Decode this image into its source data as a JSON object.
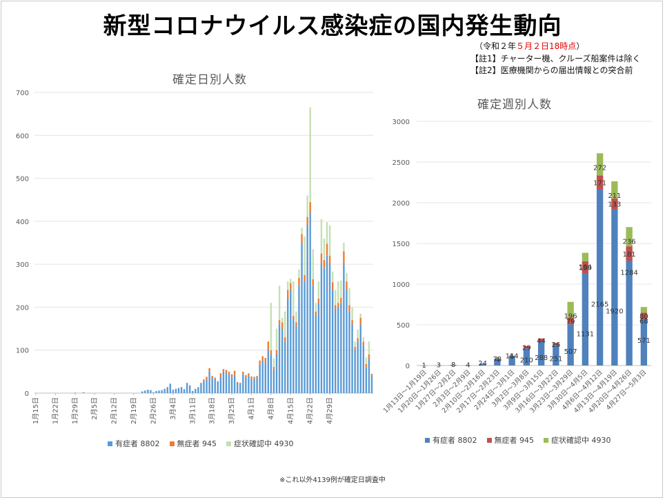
{
  "header": {
    "title": "新型コロナウイルス感染症の国内発生動向",
    "asof_prefix": "（令和２年",
    "asof_red": "５月２日18時点",
    "asof_suffix": "）",
    "note1": "【註1】チャーター機、クルーズ船案件は除く",
    "note2": "【註2】医療機関からの届出情報との突合前"
  },
  "footnote": "※これ以外4139例が確定日調査中",
  "colors": {
    "symptomatic": "#4f81bd",
    "asymptomatic": "#c0504d",
    "confirming": "#9bbb59",
    "daily_sym": "#5b9bd5",
    "daily_asym": "#ed7d31",
    "daily_conf": "#c5e0b4"
  },
  "chart_data": [
    {
      "type": "bar",
      "stacked": true,
      "title": "確定日別人数",
      "ylim": [
        0,
        700
      ],
      "yticks": [
        0,
        100,
        200,
        300,
        400,
        500,
        600,
        700
      ],
      "grid": true,
      "legend_position": "bottom",
      "x_tick_labels": [
        "1月15日",
        "1月22日",
        "1月29日",
        "2月5日",
        "2月12日",
        "2月19日",
        "2月26日",
        "3月4日",
        "3月11日",
        "3月18日",
        "3月25日",
        "4月1日",
        "4月8日",
        "4月15日",
        "4月22日",
        "4月29日"
      ],
      "x_tick_every": 7,
      "legend": [
        "有症者 8802",
        "無症者 945",
        "症状確認中 4930"
      ],
      "series": [
        {
          "name": "有症者 8802",
          "values": [
            0,
            0,
            0,
            0,
            0,
            0,
            0,
            0,
            0,
            0,
            0,
            0,
            0,
            0,
            1,
            0,
            0,
            2,
            0,
            0,
            0,
            0,
            0,
            0,
            0,
            0,
            0,
            0,
            0,
            0,
            0,
            0,
            0,
            0,
            0,
            0,
            0,
            0,
            4,
            6,
            8,
            7,
            2,
            5,
            6,
            7,
            10,
            14,
            22,
            8,
            10,
            12,
            14,
            9,
            22,
            18,
            5,
            10,
            14,
            22,
            28,
            32,
            50,
            36,
            32,
            26,
            38,
            50,
            48,
            44,
            38,
            42,
            24,
            22,
            44,
            36,
            40,
            33,
            34,
            36,
            66,
            76,
            72,
            100,
            90,
            55,
            90,
            160,
            150,
            120,
            220,
            240,
            170,
            155,
            250,
            350,
            260,
            390,
            420,
            250,
            180,
            210,
            300,
            290,
            320,
            300,
            240,
            195,
            200,
            210,
            300,
            240,
            190,
            160,
            100,
            120,
            160,
            110,
            60,
            80,
            40
          ]
        },
        {
          "name": "無症者 945",
          "values": [
            0,
            0,
            0,
            0,
            0,
            0,
            0,
            0,
            0,
            0,
            0,
            0,
            0,
            0,
            0,
            0,
            0,
            0,
            0,
            0,
            0,
            0,
            0,
            0,
            0,
            0,
            0,
            0,
            0,
            0,
            0,
            0,
            0,
            0,
            0,
            0,
            0,
            0,
            0,
            0,
            0,
            0,
            0,
            0,
            0,
            0,
            0,
            0,
            0,
            0,
            0,
            0,
            0,
            0,
            2,
            0,
            0,
            0,
            0,
            2,
            4,
            6,
            8,
            4,
            4,
            2,
            8,
            6,
            6,
            6,
            6,
            10,
            2,
            2,
            6,
            6,
            6,
            6,
            4,
            4,
            10,
            10,
            10,
            20,
            10,
            6,
            10,
            10,
            15,
            10,
            20,
            16,
            10,
            10,
            18,
            20,
            15,
            20,
            25,
            15,
            10,
            10,
            25,
            20,
            28,
            20,
            18,
            10,
            10,
            12,
            30,
            20,
            15,
            10,
            8,
            8,
            15,
            10,
            8,
            10,
            5
          ]
        },
        {
          "name": "症状確認中 4930",
          "values": [
            0,
            0,
            0,
            0,
            0,
            0,
            0,
            0,
            0,
            0,
            0,
            0,
            0,
            0,
            0,
            0,
            0,
            0,
            0,
            0,
            0,
            0,
            0,
            0,
            0,
            0,
            0,
            0,
            0,
            0,
            0,
            0,
            0,
            0,
            0,
            0,
            0,
            0,
            0,
            0,
            0,
            0,
            0,
            0,
            0,
            0,
            0,
            0,
            0,
            0,
            0,
            0,
            0,
            0,
            0,
            0,
            0,
            0,
            0,
            0,
            0,
            0,
            0,
            0,
            0,
            0,
            0,
            0,
            0,
            0,
            0,
            0,
            0,
            0,
            0,
            0,
            0,
            0,
            0,
            0,
            0,
            0,
            0,
            0,
            110,
            20,
            50,
            80,
            10,
            60,
            20,
            10,
            80,
            25,
            20,
            15,
            90,
            50,
            220,
            70,
            20,
            40,
            80,
            50,
            50,
            70,
            25,
            35,
            50,
            40,
            20,
            20,
            40,
            30,
            12,
            20,
            10,
            10,
            15,
            30,
            0
          ]
        }
      ]
    },
    {
      "type": "bar",
      "stacked": true,
      "title": "確定週別人数",
      "ylim": [
        0,
        3000
      ],
      "yticks": [
        0,
        500,
        1000,
        1500,
        2000,
        2500,
        3000
      ],
      "grid": true,
      "legend_position": "bottom",
      "categories": [
        "1月13日～1月19日",
        "1月20日～1月26日",
        "1月27日～2月2日",
        "2月3日～2月9日",
        "2月10日～2月16日",
        "2月17日～2月23日",
        "2月24日～3月1日",
        "3月2日～3月8日",
        "3月9日～3月15日",
        "3月16日～3月22日",
        "3月23日～3月29日",
        "3月30日～4月5日",
        "4月6日～4月12日",
        "4月13日～4月19日",
        "4月20日～4月26日",
        "4月27日～5月3日"
      ],
      "legend": [
        "有症者 8802",
        "無症者 945",
        "症状確認中 4930"
      ],
      "series": [
        {
          "name": "有症者 8802",
          "values": [
            1,
            3,
            8,
            4,
            24,
            78,
            114,
            210,
            288,
            251,
            507,
            1131,
            2165,
            1920,
            1284,
            571
          ]
        },
        {
          "name": "無症者 945",
          "values": [
            0,
            0,
            0,
            0,
            0,
            4,
            6,
            29,
            44,
            26,
            79,
            150,
            171,
            133,
            181,
            80
          ]
        },
        {
          "name": "症状確認中 4930",
          "values": [
            0,
            0,
            0,
            0,
            0,
            0,
            0,
            0,
            0,
            0,
            196,
            104,
            272,
            211,
            236,
            68
          ]
        }
      ],
      "data_labels": [
        {
          "category": 0,
          "labels": [
            "1"
          ]
        },
        {
          "category": 1,
          "labels": [
            "3"
          ]
        },
        {
          "category": 2,
          "labels": [
            "8"
          ]
        },
        {
          "category": 3,
          "labels": [
            "4"
          ]
        },
        {
          "category": 4,
          "labels": [
            "24"
          ]
        },
        {
          "category": 5,
          "labels": [
            "78",
            "4"
          ]
        },
        {
          "category": 6,
          "labels": [
            "114",
            "6"
          ]
        },
        {
          "category": 7,
          "labels": [
            "210",
            "29"
          ]
        },
        {
          "category": 8,
          "labels": [
            "288",
            "44"
          ]
        },
        {
          "category": 9,
          "labels": [
            "251",
            "26"
          ]
        },
        {
          "category": 10,
          "labels": [
            "507",
            "79",
            "196"
          ]
        },
        {
          "category": 11,
          "labels": [
            "1131",
            "150",
            "104"
          ]
        },
        {
          "category": 12,
          "labels": [
            "2165",
            "171",
            "272"
          ]
        },
        {
          "category": 13,
          "labels": [
            "1920",
            "133",
            "211"
          ]
        },
        {
          "category": 14,
          "labels": [
            "1284",
            "181",
            "236"
          ]
        },
        {
          "category": 15,
          "labels": [
            "571",
            "80",
            "68"
          ]
        }
      ]
    }
  ]
}
